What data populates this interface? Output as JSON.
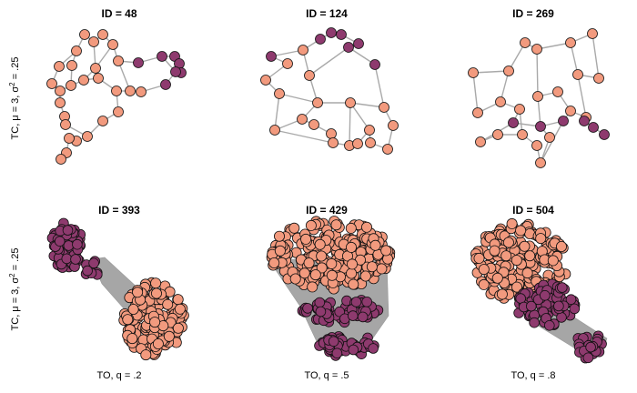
{
  "colors": {
    "light": "#f29a7e",
    "dark": "#8e3a6e",
    "edge": "#a9a9a9",
    "outline": "#111111"
  },
  "rows": [
    {
      "label_prefix": "TC, μ = 3, σ",
      "label_sup": "2",
      "label_suffix": " = .25"
    },
    {
      "label_prefix": "TC, μ = 3, σ",
      "label_sup": "2",
      "label_suffix": " = .25"
    }
  ],
  "column_labels": [
    "TO, q = .2",
    "TO, q = .5",
    "TO, q = .8"
  ],
  "panels": [
    {
      "title": "ID = 48"
    },
    {
      "title": "ID = 124"
    },
    {
      "title": "ID = 269"
    },
    {
      "title": "ID = 393"
    },
    {
      "title": "ID = 429"
    },
    {
      "title": "ID = 504"
    }
  ]
}
